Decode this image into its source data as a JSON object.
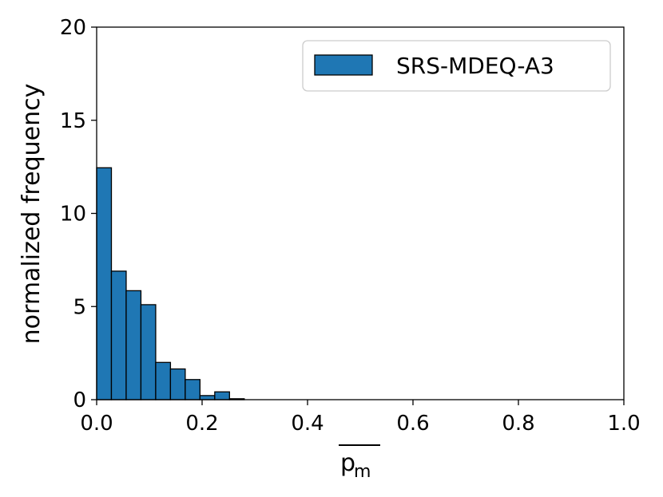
{
  "chart_data": {
    "type": "bar",
    "title": "",
    "xlabel": "p_m",
    "xlabel_base": "p",
    "xlabel_sub": "m",
    "ylabel": "normalized frequency",
    "xlim": [
      0.0,
      1.0
    ],
    "ylim": [
      0,
      20
    ],
    "xticks": [
      "0.0",
      "0.2",
      "0.4",
      "0.6",
      "0.8",
      "1.0"
    ],
    "yticks": [
      "0",
      "5",
      "10",
      "15",
      "20"
    ],
    "grid": false,
    "legend_position": "top-right",
    "bar_color": "#1f77b4",
    "bar_edge_color": "#000000",
    "series": [
      {
        "name": "SRS-MDEQ-A3",
        "bin_edges": [
          0.0,
          0.028,
          0.056,
          0.084,
          0.112,
          0.14,
          0.168,
          0.196,
          0.224,
          0.252,
          0.28
        ],
        "values": [
          12.45,
          6.9,
          5.85,
          5.1,
          2.0,
          1.65,
          1.08,
          0.22,
          0.42,
          0.05
        ]
      }
    ]
  }
}
